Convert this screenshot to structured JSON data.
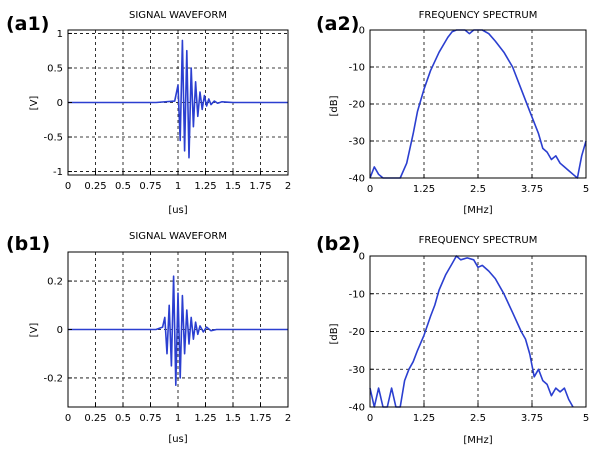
{
  "chart_data": [
    {
      "id": "a1",
      "panel_label": "(a1)",
      "type": "line",
      "title": "SIGNAL WAVEFORM",
      "xlabel": "[us]",
      "ylabel": "[V]",
      "xlim": [
        0,
        2
      ],
      "ylim": [
        -1.05,
        1.05
      ],
      "xticks": [
        0,
        0.25,
        0.5,
        0.75,
        1,
        1.25,
        1.5,
        1.75,
        2
      ],
      "xtick_labels": [
        "0",
        "0.25",
        "0.5",
        "0.75",
        "1",
        "1.25",
        "1.5",
        "1.75",
        "2"
      ],
      "yticks": [
        -1,
        -0.5,
        0,
        0.5,
        1
      ],
      "ytick_labels": [
        "-1",
        "-0.5",
        "0",
        "0.5",
        "1"
      ],
      "grid": true,
      "color": "#2b3fd0",
      "series": [
        {
          "x": [
            0,
            0.2,
            0.5,
            0.8,
            0.97,
            1.0,
            1.02,
            1.04,
            1.06,
            1.08,
            1.1,
            1.12,
            1.14,
            1.16,
            1.18,
            1.2,
            1.22,
            1.24,
            1.26,
            1.28,
            1.3,
            1.33,
            1.36,
            1.4,
            1.45,
            1.5,
            1.6,
            1.75,
            2.0
          ],
          "y": [
            0,
            0,
            0,
            0,
            0.02,
            0.25,
            -0.55,
            0.9,
            -0.7,
            0.75,
            -0.8,
            0.5,
            -0.35,
            0.3,
            -0.2,
            0.15,
            -0.1,
            0.1,
            -0.05,
            0.05,
            -0.03,
            0.02,
            -0.01,
            0.01,
            0.005,
            0.0,
            0.0,
            0.0,
            0.0
          ]
        }
      ]
    },
    {
      "id": "a2",
      "panel_label": "(a2)",
      "type": "line",
      "title": "FREQUENCY SPECTRUM",
      "xlabel": "[MHz]",
      "ylabel": "[dB]",
      "xlim": [
        0,
        5
      ],
      "ylim": [
        -40,
        0
      ],
      "xticks": [
        0,
        1.25,
        2.5,
        3.75,
        5
      ],
      "xtick_labels": [
        "0",
        "1.25",
        "2.5",
        "3.75",
        "5"
      ],
      "yticks": [
        -40,
        -30,
        -20,
        -10,
        0
      ],
      "ytick_labels": [
        "-40",
        "-30",
        "-20",
        "-10",
        "0"
      ],
      "grid": true,
      "color": "#2b3fd0",
      "series": [
        {
          "x": [
            0.0,
            0.1,
            0.2,
            0.3,
            0.5,
            0.7,
            0.85,
            1.0,
            1.1,
            1.25,
            1.4,
            1.6,
            1.8,
            1.9,
            2.0,
            2.2,
            2.3,
            2.4,
            2.5,
            2.6,
            2.75,
            2.9,
            3.1,
            3.3,
            3.5,
            3.7,
            3.9,
            4.0,
            4.1,
            4.2,
            4.3,
            4.4,
            4.5,
            4.6,
            4.7,
            4.8,
            4.9,
            5.0
          ],
          "y": [
            -40,
            -37,
            -39,
            -40,
            -40,
            -40,
            -36,
            -28,
            -22,
            -16,
            -11,
            -6,
            -2,
            -0.5,
            0,
            0,
            -1,
            0,
            0,
            0,
            -1,
            -3,
            -6,
            -10,
            -16,
            -22,
            -28,
            -32,
            -33,
            -35,
            -34,
            -36,
            -37,
            -38,
            -39,
            -40,
            -34,
            -30
          ]
        }
      ]
    },
    {
      "id": "b1",
      "panel_label": "(b1)",
      "type": "line",
      "title": "SIGNAL WAVEFORM",
      "xlabel": "[us]",
      "ylabel": "[V]",
      "xlim": [
        0,
        2
      ],
      "ylim": [
        -0.32,
        0.32
      ],
      "xticks": [
        0,
        0.25,
        0.5,
        0.75,
        1,
        1.25,
        1.5,
        1.75,
        2
      ],
      "xtick_labels": [
        "0",
        "0.25",
        "0.5",
        "0.75",
        "1",
        "1.25",
        "1.5",
        "1.75",
        "2"
      ],
      "yticks": [
        -0.2,
        0,
        0.2
      ],
      "ytick_labels": [
        "-0.2",
        "0",
        "0.2"
      ],
      "grid": true,
      "color": "#2b3fd0",
      "series": [
        {
          "x": [
            0,
            0.2,
            0.4,
            0.6,
            0.8,
            0.86,
            0.88,
            0.9,
            0.92,
            0.94,
            0.96,
            0.98,
            1.0,
            1.02,
            1.04,
            1.06,
            1.08,
            1.1,
            1.12,
            1.14,
            1.16,
            1.18,
            1.2,
            1.23,
            1.26,
            1.3,
            1.35,
            1.4,
            1.5,
            1.6,
            1.75,
            2.0
          ],
          "y": [
            0,
            0,
            0,
            0,
            0,
            0.01,
            0.05,
            -0.1,
            0.1,
            -0.15,
            0.22,
            -0.23,
            0.15,
            -0.2,
            0.14,
            -0.1,
            0.08,
            -0.06,
            0.05,
            -0.04,
            0.03,
            -0.02,
            0.015,
            -0.01,
            0.01,
            -0.005,
            0.0,
            0.0,
            0.0,
            0.0,
            0.0,
            0.0
          ]
        }
      ]
    },
    {
      "id": "b2",
      "panel_label": "(b2)",
      "type": "line",
      "title": "FREQUENCY SPECTRUM",
      "xlabel": "[MHz]",
      "ylabel": "[dB]",
      "xlim": [
        0,
        5
      ],
      "ylim": [
        -40,
        0
      ],
      "xticks": [
        0,
        1.25,
        2.5,
        3.75,
        5
      ],
      "xtick_labels": [
        "0",
        "1.25",
        "2.5",
        "3.75",
        "5"
      ],
      "yticks": [
        -40,
        -30,
        -20,
        -10,
        0
      ],
      "ytick_labels": [
        "-40",
        "-30",
        "-20",
        "-10",
        "0"
      ],
      "grid": true,
      "color": "#2b3fd0",
      "series": [
        {
          "x": [
            0.0,
            0.1,
            0.2,
            0.3,
            0.4,
            0.5,
            0.6,
            0.7,
            0.8,
            0.9,
            1.0,
            1.1,
            1.25,
            1.4,
            1.5,
            1.6,
            1.75,
            1.9,
            2.0,
            2.1,
            2.25,
            2.4,
            2.5,
            2.6,
            2.75,
            2.9,
            3.1,
            3.3,
            3.5,
            3.6,
            3.7,
            3.8,
            3.9,
            4.0,
            4.1,
            4.2,
            4.3,
            4.4,
            4.5,
            4.6,
            4.7
          ],
          "y": [
            -35,
            -40,
            -35,
            -40,
            -40,
            -35,
            -40,
            -40,
            -33,
            -30,
            -28,
            -25,
            -21,
            -16,
            -13,
            -9,
            -5,
            -2,
            0,
            -1,
            -0.5,
            -1,
            -3,
            -2.5,
            -4,
            -6,
            -10,
            -15,
            -20,
            -22,
            -26,
            -32,
            -30,
            -33,
            -34,
            -37,
            -35,
            -36,
            -35,
            -38,
            -40
          ]
        }
      ]
    }
  ]
}
